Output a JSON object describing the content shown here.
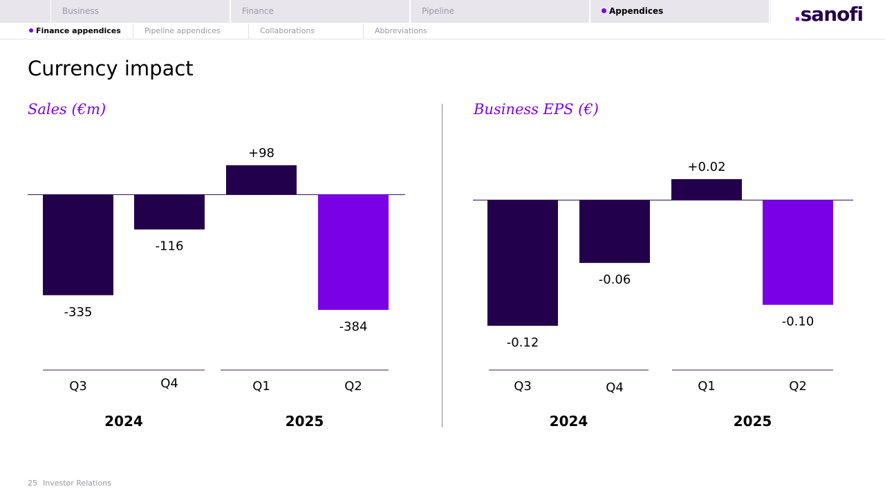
{
  "nav": {
    "tabs": [
      {
        "label": "Business",
        "active": false
      },
      {
        "label": "Finance",
        "active": false
      },
      {
        "label": "Pipeline",
        "active": false
      },
      {
        "label": "Appendices",
        "active": true
      }
    ],
    "logo": "sanofi",
    "subtabs": [
      {
        "label": "Finance appendices",
        "active": true
      },
      {
        "label": "Pipeline appendices",
        "active": false
      },
      {
        "label": "Collaborations",
        "active": false
      },
      {
        "label": "Abbreviations",
        "active": false
      }
    ]
  },
  "page": {
    "title": "Currency impact"
  },
  "colors": {
    "dark": "#23004c",
    "accent": "#7a00e6"
  },
  "chart_data": [
    {
      "type": "bar",
      "title": "Sales (€m)",
      "categories": [
        "Q3",
        "Q4",
        "Q1",
        "Q2"
      ],
      "groups": [
        {
          "label": "2024",
          "categories": [
            "Q3",
            "Q4"
          ]
        },
        {
          "label": "2025",
          "categories": [
            "Q1",
            "Q2"
          ]
        }
      ],
      "values": [
        -335,
        -116,
        98,
        -384
      ],
      "value_labels": [
        "-335",
        "-116",
        "+98",
        "-384"
      ],
      "highlight_index": 3,
      "ylim": [
        -400,
        100
      ]
    },
    {
      "type": "bar",
      "title": "Business EPS (€)",
      "categories": [
        "Q3",
        "Q4",
        "Q1",
        "Q2"
      ],
      "groups": [
        {
          "label": "2024",
          "categories": [
            "Q3",
            "Q4"
          ]
        },
        {
          "label": "2025",
          "categories": [
            "Q1",
            "Q2"
          ]
        }
      ],
      "values": [
        -0.12,
        -0.06,
        0.02,
        -0.1
      ],
      "value_labels": [
        "-0.12",
        "-0.06",
        "+0.02",
        "-0.10"
      ],
      "highlight_index": 3,
      "ylim": [
        -0.12,
        0.02
      ]
    }
  ],
  "footer": {
    "page_number": "25",
    "text": "Investor Relations"
  }
}
